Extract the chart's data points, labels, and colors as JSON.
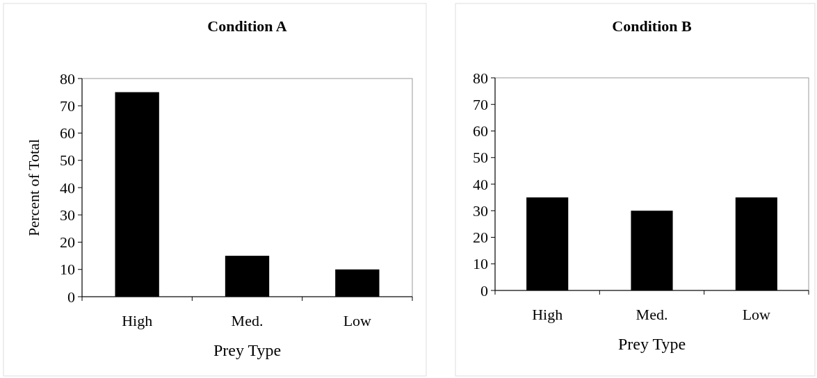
{
  "chart_data": [
    {
      "type": "bar",
      "title": "Condition A",
      "xlabel": "Prey Type",
      "ylabel": "Percent of Total",
      "categories": [
        "High",
        "Med.",
        "Low"
      ],
      "values": [
        75,
        15,
        10
      ],
      "color": "#000000",
      "ylim": [
        0,
        80
      ],
      "yticks": [
        0,
        10,
        20,
        30,
        40,
        50,
        60,
        70,
        80
      ]
    },
    {
      "type": "bar",
      "title": "Condition B",
      "xlabel": "Prey Type",
      "categories": [
        "High",
        "Med.",
        "Low"
      ],
      "values": [
        35,
        30,
        35
      ],
      "color": "#000000",
      "ylim": [
        0,
        80
      ],
      "yticks": [
        0,
        10,
        20,
        30,
        40,
        50,
        60,
        70,
        80
      ]
    }
  ]
}
